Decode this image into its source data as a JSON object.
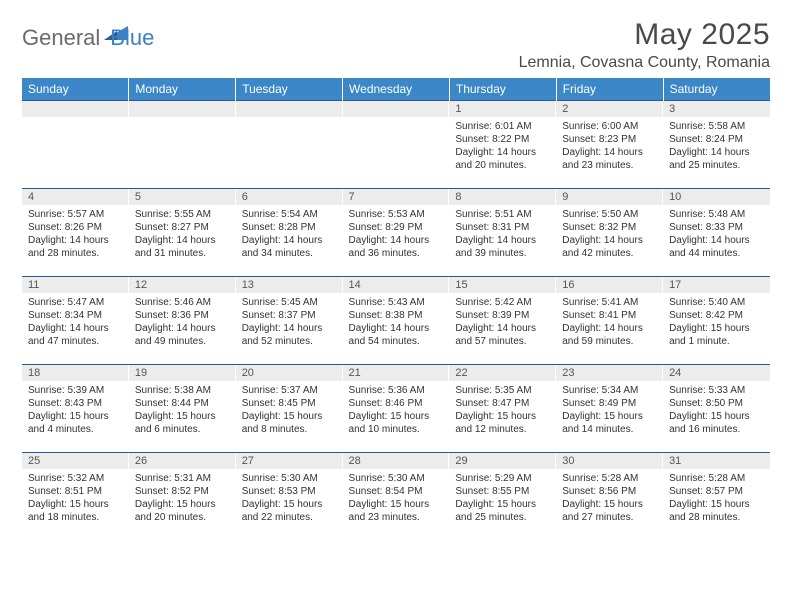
{
  "logo": {
    "text_a": "General",
    "text_b": "Blue"
  },
  "title": "May 2025",
  "location": "Lemnia, Covasna County, Romania",
  "colors": {
    "header_bg": "#3b87c8",
    "header_text": "#ffffff",
    "row_sep": "#2f5a86",
    "daynum_bg": "#ececec",
    "logo_gray": "#6b6b6b",
    "logo_blue": "#3b7fc4"
  },
  "weekdays": [
    "Sunday",
    "Monday",
    "Tuesday",
    "Wednesday",
    "Thursday",
    "Friday",
    "Saturday"
  ],
  "weeks": [
    [
      null,
      null,
      null,
      null,
      {
        "n": "1",
        "sr": "Sunrise: 6:01 AM",
        "ss": "Sunset: 8:22 PM",
        "d1": "Daylight: 14 hours",
        "d2": "and 20 minutes."
      },
      {
        "n": "2",
        "sr": "Sunrise: 6:00 AM",
        "ss": "Sunset: 8:23 PM",
        "d1": "Daylight: 14 hours",
        "d2": "and 23 minutes."
      },
      {
        "n": "3",
        "sr": "Sunrise: 5:58 AM",
        "ss": "Sunset: 8:24 PM",
        "d1": "Daylight: 14 hours",
        "d2": "and 25 minutes."
      }
    ],
    [
      {
        "n": "4",
        "sr": "Sunrise: 5:57 AM",
        "ss": "Sunset: 8:26 PM",
        "d1": "Daylight: 14 hours",
        "d2": "and 28 minutes."
      },
      {
        "n": "5",
        "sr": "Sunrise: 5:55 AM",
        "ss": "Sunset: 8:27 PM",
        "d1": "Daylight: 14 hours",
        "d2": "and 31 minutes."
      },
      {
        "n": "6",
        "sr": "Sunrise: 5:54 AM",
        "ss": "Sunset: 8:28 PM",
        "d1": "Daylight: 14 hours",
        "d2": "and 34 minutes."
      },
      {
        "n": "7",
        "sr": "Sunrise: 5:53 AM",
        "ss": "Sunset: 8:29 PM",
        "d1": "Daylight: 14 hours",
        "d2": "and 36 minutes."
      },
      {
        "n": "8",
        "sr": "Sunrise: 5:51 AM",
        "ss": "Sunset: 8:31 PM",
        "d1": "Daylight: 14 hours",
        "d2": "and 39 minutes."
      },
      {
        "n": "9",
        "sr": "Sunrise: 5:50 AM",
        "ss": "Sunset: 8:32 PM",
        "d1": "Daylight: 14 hours",
        "d2": "and 42 minutes."
      },
      {
        "n": "10",
        "sr": "Sunrise: 5:48 AM",
        "ss": "Sunset: 8:33 PM",
        "d1": "Daylight: 14 hours",
        "d2": "and 44 minutes."
      }
    ],
    [
      {
        "n": "11",
        "sr": "Sunrise: 5:47 AM",
        "ss": "Sunset: 8:34 PM",
        "d1": "Daylight: 14 hours",
        "d2": "and 47 minutes."
      },
      {
        "n": "12",
        "sr": "Sunrise: 5:46 AM",
        "ss": "Sunset: 8:36 PM",
        "d1": "Daylight: 14 hours",
        "d2": "and 49 minutes."
      },
      {
        "n": "13",
        "sr": "Sunrise: 5:45 AM",
        "ss": "Sunset: 8:37 PM",
        "d1": "Daylight: 14 hours",
        "d2": "and 52 minutes."
      },
      {
        "n": "14",
        "sr": "Sunrise: 5:43 AM",
        "ss": "Sunset: 8:38 PM",
        "d1": "Daylight: 14 hours",
        "d2": "and 54 minutes."
      },
      {
        "n": "15",
        "sr": "Sunrise: 5:42 AM",
        "ss": "Sunset: 8:39 PM",
        "d1": "Daylight: 14 hours",
        "d2": "and 57 minutes."
      },
      {
        "n": "16",
        "sr": "Sunrise: 5:41 AM",
        "ss": "Sunset: 8:41 PM",
        "d1": "Daylight: 14 hours",
        "d2": "and 59 minutes."
      },
      {
        "n": "17",
        "sr": "Sunrise: 5:40 AM",
        "ss": "Sunset: 8:42 PM",
        "d1": "Daylight: 15 hours",
        "d2": "and 1 minute."
      }
    ],
    [
      {
        "n": "18",
        "sr": "Sunrise: 5:39 AM",
        "ss": "Sunset: 8:43 PM",
        "d1": "Daylight: 15 hours",
        "d2": "and 4 minutes."
      },
      {
        "n": "19",
        "sr": "Sunrise: 5:38 AM",
        "ss": "Sunset: 8:44 PM",
        "d1": "Daylight: 15 hours",
        "d2": "and 6 minutes."
      },
      {
        "n": "20",
        "sr": "Sunrise: 5:37 AM",
        "ss": "Sunset: 8:45 PM",
        "d1": "Daylight: 15 hours",
        "d2": "and 8 minutes."
      },
      {
        "n": "21",
        "sr": "Sunrise: 5:36 AM",
        "ss": "Sunset: 8:46 PM",
        "d1": "Daylight: 15 hours",
        "d2": "and 10 minutes."
      },
      {
        "n": "22",
        "sr": "Sunrise: 5:35 AM",
        "ss": "Sunset: 8:47 PM",
        "d1": "Daylight: 15 hours",
        "d2": "and 12 minutes."
      },
      {
        "n": "23",
        "sr": "Sunrise: 5:34 AM",
        "ss": "Sunset: 8:49 PM",
        "d1": "Daylight: 15 hours",
        "d2": "and 14 minutes."
      },
      {
        "n": "24",
        "sr": "Sunrise: 5:33 AM",
        "ss": "Sunset: 8:50 PM",
        "d1": "Daylight: 15 hours",
        "d2": "and 16 minutes."
      }
    ],
    [
      {
        "n": "25",
        "sr": "Sunrise: 5:32 AM",
        "ss": "Sunset: 8:51 PM",
        "d1": "Daylight: 15 hours",
        "d2": "and 18 minutes."
      },
      {
        "n": "26",
        "sr": "Sunrise: 5:31 AM",
        "ss": "Sunset: 8:52 PM",
        "d1": "Daylight: 15 hours",
        "d2": "and 20 minutes."
      },
      {
        "n": "27",
        "sr": "Sunrise: 5:30 AM",
        "ss": "Sunset: 8:53 PM",
        "d1": "Daylight: 15 hours",
        "d2": "and 22 minutes."
      },
      {
        "n": "28",
        "sr": "Sunrise: 5:30 AM",
        "ss": "Sunset: 8:54 PM",
        "d1": "Daylight: 15 hours",
        "d2": "and 23 minutes."
      },
      {
        "n": "29",
        "sr": "Sunrise: 5:29 AM",
        "ss": "Sunset: 8:55 PM",
        "d1": "Daylight: 15 hours",
        "d2": "and 25 minutes."
      },
      {
        "n": "30",
        "sr": "Sunrise: 5:28 AM",
        "ss": "Sunset: 8:56 PM",
        "d1": "Daylight: 15 hours",
        "d2": "and 27 minutes."
      },
      {
        "n": "31",
        "sr": "Sunrise: 5:28 AM",
        "ss": "Sunset: 8:57 PM",
        "d1": "Daylight: 15 hours",
        "d2": "and 28 minutes."
      }
    ]
  ]
}
